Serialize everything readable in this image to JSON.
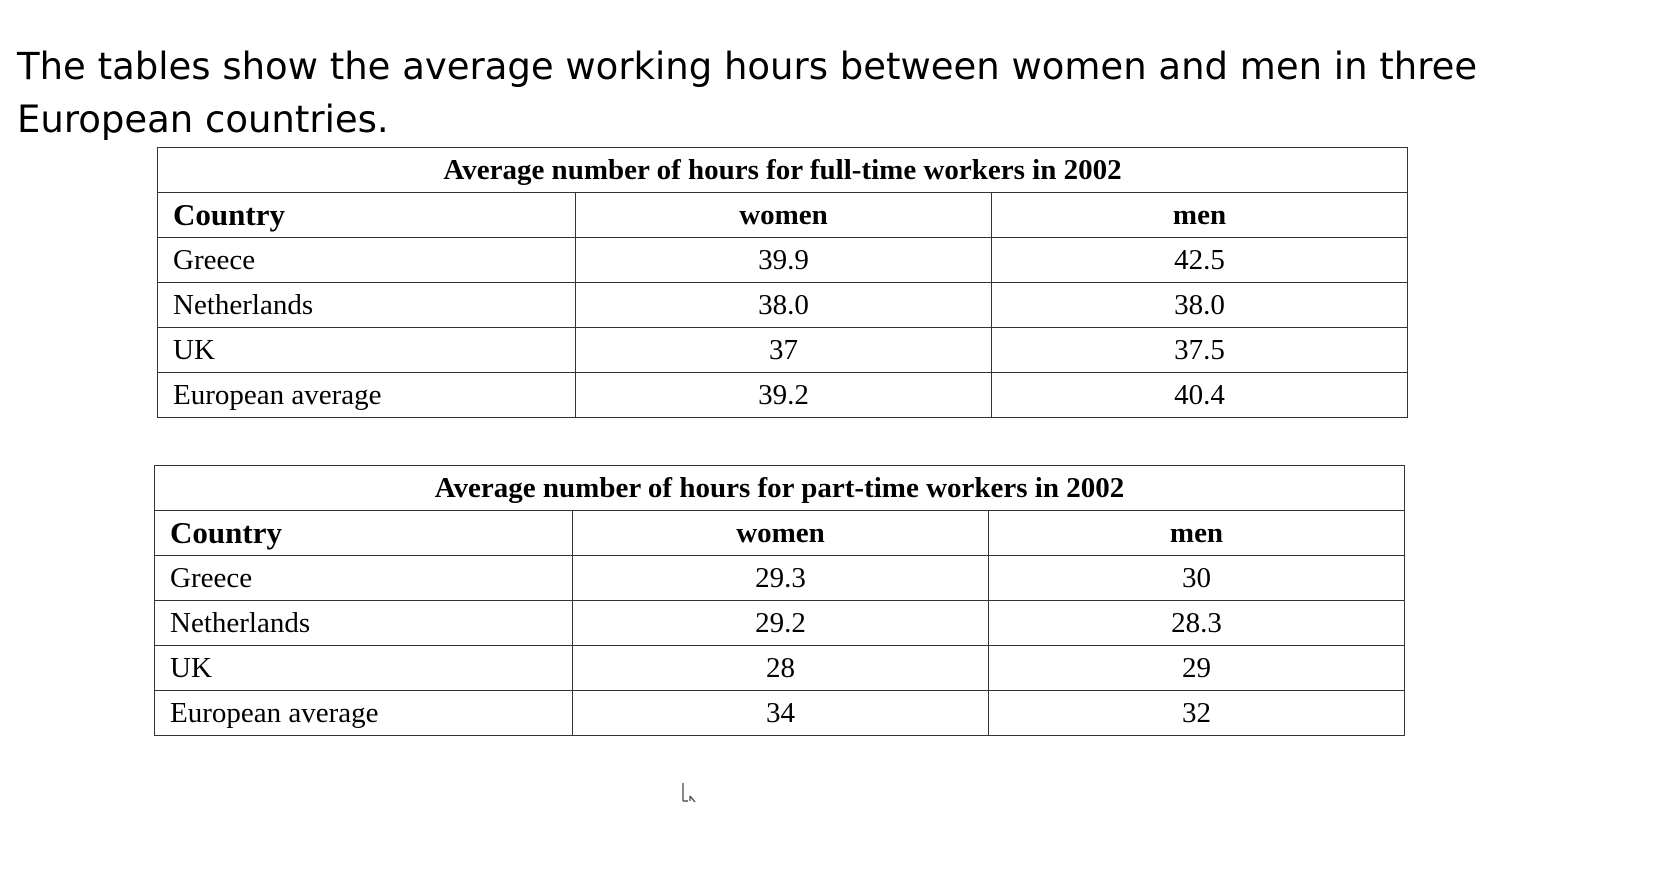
{
  "heading": "The tables show the average working hours between women and men in three European countries.",
  "chart_data": [
    {
      "type": "table",
      "title": "Average number of hours for full-time workers in 2002",
      "columns": [
        "Country",
        "women",
        "men"
      ],
      "rows": [
        {
          "country": "Greece",
          "women": "39.9",
          "men": "42.5"
        },
        {
          "country": "Netherlands",
          "women": "38.0",
          "men": "38.0"
        },
        {
          "country": "UK",
          "women": "37",
          "men": "37.5"
        },
        {
          "country": "European average",
          "women": "39.2",
          "men": "40.4"
        }
      ]
    },
    {
      "type": "table",
      "title": "Average number of hours for part-time workers in 2002",
      "columns": [
        "Country",
        "women",
        "men"
      ],
      "rows": [
        {
          "country": "Greece",
          "women": "29.3",
          "men": "30"
        },
        {
          "country": "Netherlands",
          "women": "29.2",
          "men": "28.3"
        },
        {
          "country": "UK",
          "women": "28",
          "men": "29"
        },
        {
          "country": "European average",
          "women": "34",
          "men": "32"
        }
      ]
    }
  ],
  "icons": {
    "cursor": "text-cursor-icon"
  }
}
